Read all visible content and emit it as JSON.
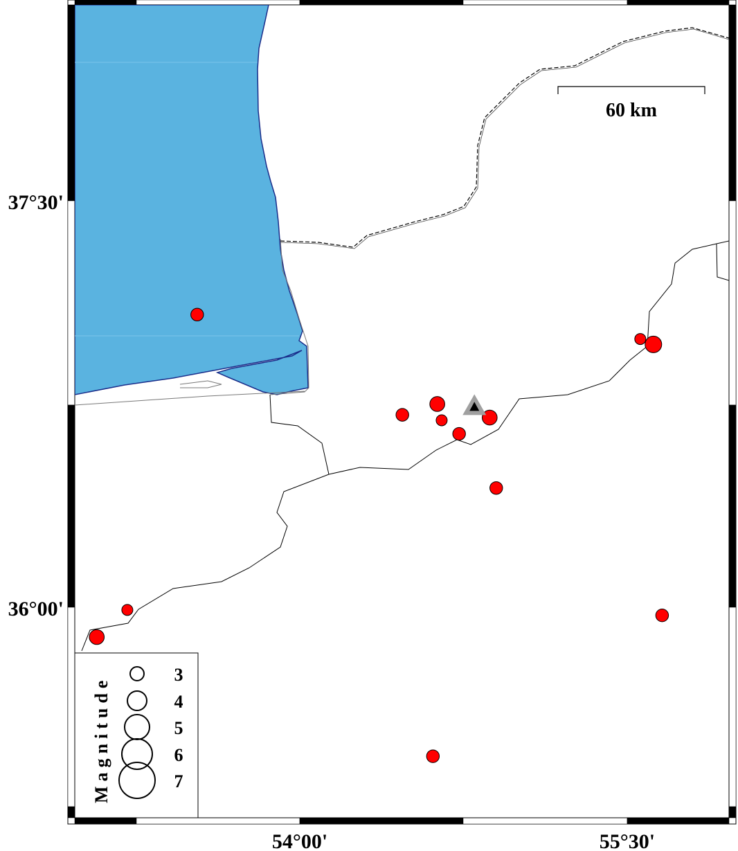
{
  "map": {
    "region": {
      "lon_min": 53.0,
      "lon_max": 56.0,
      "lat_min": 35.2,
      "lat_max": 37.7
    },
    "lon_ticks": [
      {
        "value": 54.0,
        "label": "54°00'"
      },
      {
        "value": 55.5,
        "label": "55°30'"
      }
    ],
    "lat_ticks": [
      {
        "value": 37.5,
        "label": "37°30'"
      },
      {
        "value": 36.0,
        "label": "36°00'"
      }
    ],
    "colors": {
      "sea": "#5ab3e0",
      "coast": "#1a2d8a",
      "event": "#ff0000",
      "station": "#000000",
      "station_halo": "#a0a0a0"
    },
    "scale_bar": {
      "label": "60 km"
    },
    "station": {
      "lon": 54.8,
      "lat": 36.74,
      "icon": "triangle-icon"
    },
    "events": [
      {
        "lon": 53.53,
        "lat": 37.08,
        "mag": 2.8
      },
      {
        "lon": 55.56,
        "lat": 36.99,
        "mag": 2.5
      },
      {
        "lon": 55.62,
        "lat": 36.97,
        "mag": 3.5
      },
      {
        "lon": 54.63,
        "lat": 36.75,
        "mag": 3.2
      },
      {
        "lon": 54.47,
        "lat": 36.71,
        "mag": 2.8
      },
      {
        "lon": 54.65,
        "lat": 36.69,
        "mag": 2.5
      },
      {
        "lon": 54.87,
        "lat": 36.7,
        "mag": 3.2
      },
      {
        "lon": 54.73,
        "lat": 36.64,
        "mag": 2.8
      },
      {
        "lon": 54.9,
        "lat": 36.44,
        "mag": 2.8
      },
      {
        "lon": 53.21,
        "lat": 35.99,
        "mag": 2.5
      },
      {
        "lon": 53.07,
        "lat": 35.89,
        "mag": 3.2
      },
      {
        "lon": 55.66,
        "lat": 35.97,
        "mag": 2.8
      },
      {
        "lon": 54.61,
        "lat": 35.45,
        "mag": 2.8
      }
    ]
  },
  "legend": {
    "title": "Magnitude",
    "entries": [
      {
        "mag": 3,
        "label": "3"
      },
      {
        "mag": 4,
        "label": "4"
      },
      {
        "mag": 5,
        "label": "5"
      },
      {
        "mag": 6,
        "label": "6"
      },
      {
        "mag": 7,
        "label": "7"
      }
    ]
  }
}
